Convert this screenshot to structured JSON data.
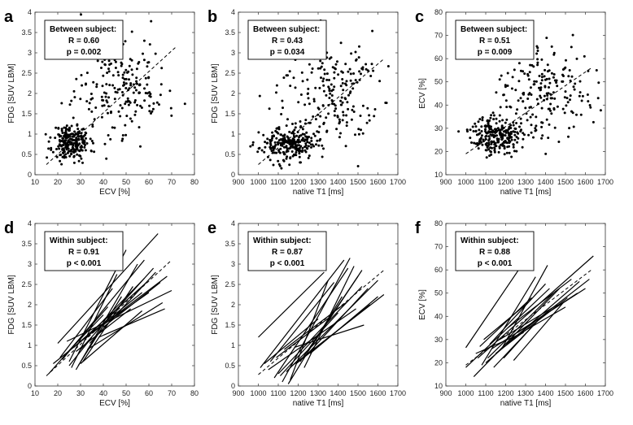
{
  "chart_data": [
    {
      "panel": "a",
      "type": "scatter",
      "xlabel": "ECV [%]",
      "ylabel": "FDG [SUV LBM]",
      "xlim": [
        10,
        80
      ],
      "ylim": [
        0,
        4
      ],
      "xticks": [
        10,
        20,
        30,
        40,
        50,
        60,
        70,
        80
      ],
      "yticks": [
        0,
        0.5,
        1,
        1.5,
        2,
        2.5,
        3,
        3.5,
        4
      ],
      "annotation": [
        "Between subject:",
        "R = 0.60",
        "p = 0.002"
      ],
      "fit": {
        "x": [
          15,
          72
        ],
        "y": [
          0.25,
          3.15
        ]
      },
      "clusters": [
        {
          "cx": 26,
          "cy": 0.8,
          "sx": 4,
          "sy": 0.22,
          "n": 240
        },
        {
          "cx": 48,
          "cy": 2.2,
          "sx": 10,
          "sy": 0.6,
          "n": 200
        }
      ],
      "seed": 11
    },
    {
      "panel": "b",
      "type": "scatter",
      "xlabel": "native T1 [ms]",
      "ylabel": "FDG [SUV LBM]",
      "xlim": [
        900,
        1700
      ],
      "ylim": [
        0,
        4
      ],
      "xticks": [
        900,
        1000,
        1100,
        1200,
        1300,
        1400,
        1500,
        1600,
        1700
      ],
      "yticks": [
        0,
        0.5,
        1,
        1.5,
        2,
        2.5,
        3,
        3.5,
        4
      ],
      "annotation": [
        "Between subject:",
        "R = 0.43",
        "p = 0.034"
      ],
      "fit": {
        "x": [
          1000,
          1630
        ],
        "y": [
          0.25,
          2.85
        ]
      },
      "clusters": [
        {
          "cx": 1150,
          "cy": 0.75,
          "sx": 70,
          "sy": 0.2,
          "n": 240
        },
        {
          "cx": 1360,
          "cy": 2.0,
          "sx": 120,
          "sy": 0.65,
          "n": 200
        }
      ],
      "seed": 23
    },
    {
      "panel": "c",
      "type": "scatter",
      "xlabel": "native T1 [ms]",
      "ylabel": "ECV [%]",
      "xlim": [
        900,
        1700
      ],
      "ylim": [
        10,
        80
      ],
      "xticks": [
        900,
        1000,
        1100,
        1200,
        1300,
        1400,
        1500,
        1600,
        1700
      ],
      "yticks": [
        10,
        20,
        30,
        40,
        50,
        60,
        70,
        80
      ],
      "annotation": [
        "Between subject:",
        "R = 0.51",
        "p = 0.009"
      ],
      "fit": {
        "x": [
          1000,
          1630
        ],
        "y": [
          19,
          56
        ]
      },
      "clusters": [
        {
          "cx": 1150,
          "cy": 27,
          "sx": 60,
          "sy": 4,
          "n": 240
        },
        {
          "cx": 1400,
          "cy": 47,
          "sx": 120,
          "sy": 10,
          "n": 200
        }
      ],
      "seed": 37
    },
    {
      "panel": "d",
      "type": "line",
      "xlabel": "ECV [%]",
      "ylabel": "FDG [SUV LBM]",
      "xlim": [
        10,
        80
      ],
      "ylim": [
        0,
        4
      ],
      "xticks": [
        10,
        20,
        30,
        40,
        50,
        60,
        70,
        80
      ],
      "yticks": [
        0,
        0.5,
        1,
        1.5,
        2,
        2.5,
        3,
        3.5,
        4
      ],
      "annotation": [
        "Within subject:",
        "R = 0.91",
        "p < 0.001"
      ],
      "fit": {
        "x": [
          15,
          70
        ],
        "y": [
          0.25,
          3.1
        ]
      },
      "segments": [
        [
          20,
          1.05,
          64,
          3.75
        ],
        [
          25,
          0.6,
          50,
          3.35
        ],
        [
          22,
          0.65,
          58,
          3.1
        ],
        [
          28,
          0.4,
          55,
          3.0
        ],
        [
          30,
          0.9,
          62,
          2.9
        ],
        [
          24,
          1.1,
          70,
          2.35
        ],
        [
          35,
          1.3,
          68,
          2.7
        ],
        [
          26,
          0.45,
          46,
          2.75
        ],
        [
          18,
          0.55,
          57,
          2.3
        ],
        [
          33,
          0.9,
          66,
          2.05
        ],
        [
          27,
          0.95,
          59,
          2.55
        ],
        [
          40,
          1.45,
          65,
          2.55
        ],
        [
          16,
          0.3,
          42,
          1.95
        ],
        [
          29,
          0.5,
          48,
          2.2
        ],
        [
          36,
          1.35,
          60,
          2.3
        ],
        [
          23,
          0.75,
          40,
          1.75
        ],
        [
          31,
          0.6,
          53,
          2.45
        ],
        [
          34,
          1.05,
          63,
          2.8
        ],
        [
          21,
          0.7,
          44,
          2.4
        ],
        [
          38,
          1.2,
          67,
          1.9
        ],
        [
          28,
          0.85,
          52,
          1.9
        ],
        [
          32,
          1.15,
          58,
          2.65
        ],
        [
          25,
          0.5,
          35,
          1.2
        ],
        [
          30,
          0.55,
          57,
          1.85
        ]
      ]
    },
    {
      "panel": "e",
      "type": "line",
      "xlabel": "native T1 [ms]",
      "ylabel": "FDG [SUV LBM]",
      "xlim": [
        900,
        1700
      ],
      "ylim": [
        0,
        4
      ],
      "xticks": [
        900,
        1000,
        1100,
        1200,
        1300,
        1400,
        1500,
        1600,
        1700
      ],
      "yticks": [
        0,
        0.5,
        1,
        1.5,
        2,
        2.5,
        3,
        3.5,
        4
      ],
      "annotation": [
        "Within subject:",
        "R = 0.87",
        "p < 0.001"
      ],
      "fit": {
        "x": [
          1000,
          1630
        ],
        "y": [
          0.28,
          2.85
        ]
      },
      "segments": [
        [
          1000,
          1.2,
          1330,
          2.8
        ],
        [
          1010,
          0.45,
          1430,
          3.1
        ],
        [
          1060,
          0.6,
          1380,
          2.55
        ],
        [
          1080,
          0.2,
          1450,
          2.9
        ],
        [
          1100,
          0.3,
          1520,
          2.45
        ],
        [
          1120,
          0.1,
          1460,
          3.15
        ],
        [
          1140,
          0.35,
          1600,
          2.6
        ],
        [
          1150,
          0.05,
          1420,
          2.2
        ],
        [
          1170,
          0.5,
          1630,
          2.25
        ],
        [
          1190,
          0.55,
          1560,
          2.0
        ],
        [
          1050,
          0.4,
          1490,
          1.9
        ],
        [
          1210,
          0.6,
          1500,
          2.7
        ],
        [
          1240,
          0.75,
          1550,
          2.4
        ],
        [
          1090,
          0.7,
          1360,
          1.7
        ],
        [
          1130,
          0.9,
          1440,
          2.05
        ],
        [
          1260,
          0.8,
          1600,
          2.2
        ],
        [
          1030,
          0.55,
          1300,
          1.65
        ],
        [
          1180,
          0.95,
          1530,
          1.5
        ],
        [
          1110,
          0.25,
          1400,
          1.8
        ],
        [
          1230,
          0.45,
          1480,
          2.95
        ],
        [
          1160,
          0.15,
          1350,
          2.6
        ],
        [
          1270,
          1.0,
          1520,
          2.85
        ]
      ]
    },
    {
      "panel": "f",
      "type": "line",
      "xlabel": "native T1 [ms]",
      "ylabel": "ECV [%]",
      "xlim": [
        900,
        1700
      ],
      "ylim": [
        10,
        80
      ],
      "xticks": [
        900,
        1000,
        1100,
        1200,
        1300,
        1400,
        1500,
        1600,
        1700
      ],
      "yticks": [
        10,
        20,
        30,
        40,
        50,
        60,
        70,
        80
      ],
      "annotation": [
        "Within subject:",
        "R = 0.88",
        "p < 0.001"
      ],
      "fit": {
        "x": [
          1000,
          1630
        ],
        "y": [
          19,
          60
        ]
      },
      "segments": [
        [
          1000,
          26.5,
          1320,
          67
        ],
        [
          1000,
          18,
          1420,
          52
        ],
        [
          1040,
          14,
          1470,
          52
        ],
        [
          1060,
          22,
          1640,
          66
        ],
        [
          1080,
          19,
          1350,
          57
        ],
        [
          1100,
          20,
          1570,
          55
        ],
        [
          1110,
          22,
          1440,
          50
        ],
        [
          1130,
          26,
          1600,
          52
        ],
        [
          1150,
          24,
          1510,
          48
        ],
        [
          1170,
          30,
          1460,
          45
        ],
        [
          1190,
          22,
          1380,
          40
        ],
        [
          1200,
          28,
          1620,
          56
        ],
        [
          1220,
          30,
          1500,
          44
        ],
        [
          1240,
          21,
          1490,
          46
        ],
        [
          1090,
          30,
          1300,
          45
        ],
        [
          1120,
          28,
          1400,
          54
        ],
        [
          1260,
          33,
          1560,
          50
        ],
        [
          1050,
          24,
          1290,
          33
        ],
        [
          1140,
          18,
          1360,
          38
        ],
        [
          1180,
          26,
          1410,
          62
        ],
        [
          1210,
          35,
          1530,
          56
        ],
        [
          1070,
          27,
          1330,
          48
        ]
      ]
    }
  ]
}
